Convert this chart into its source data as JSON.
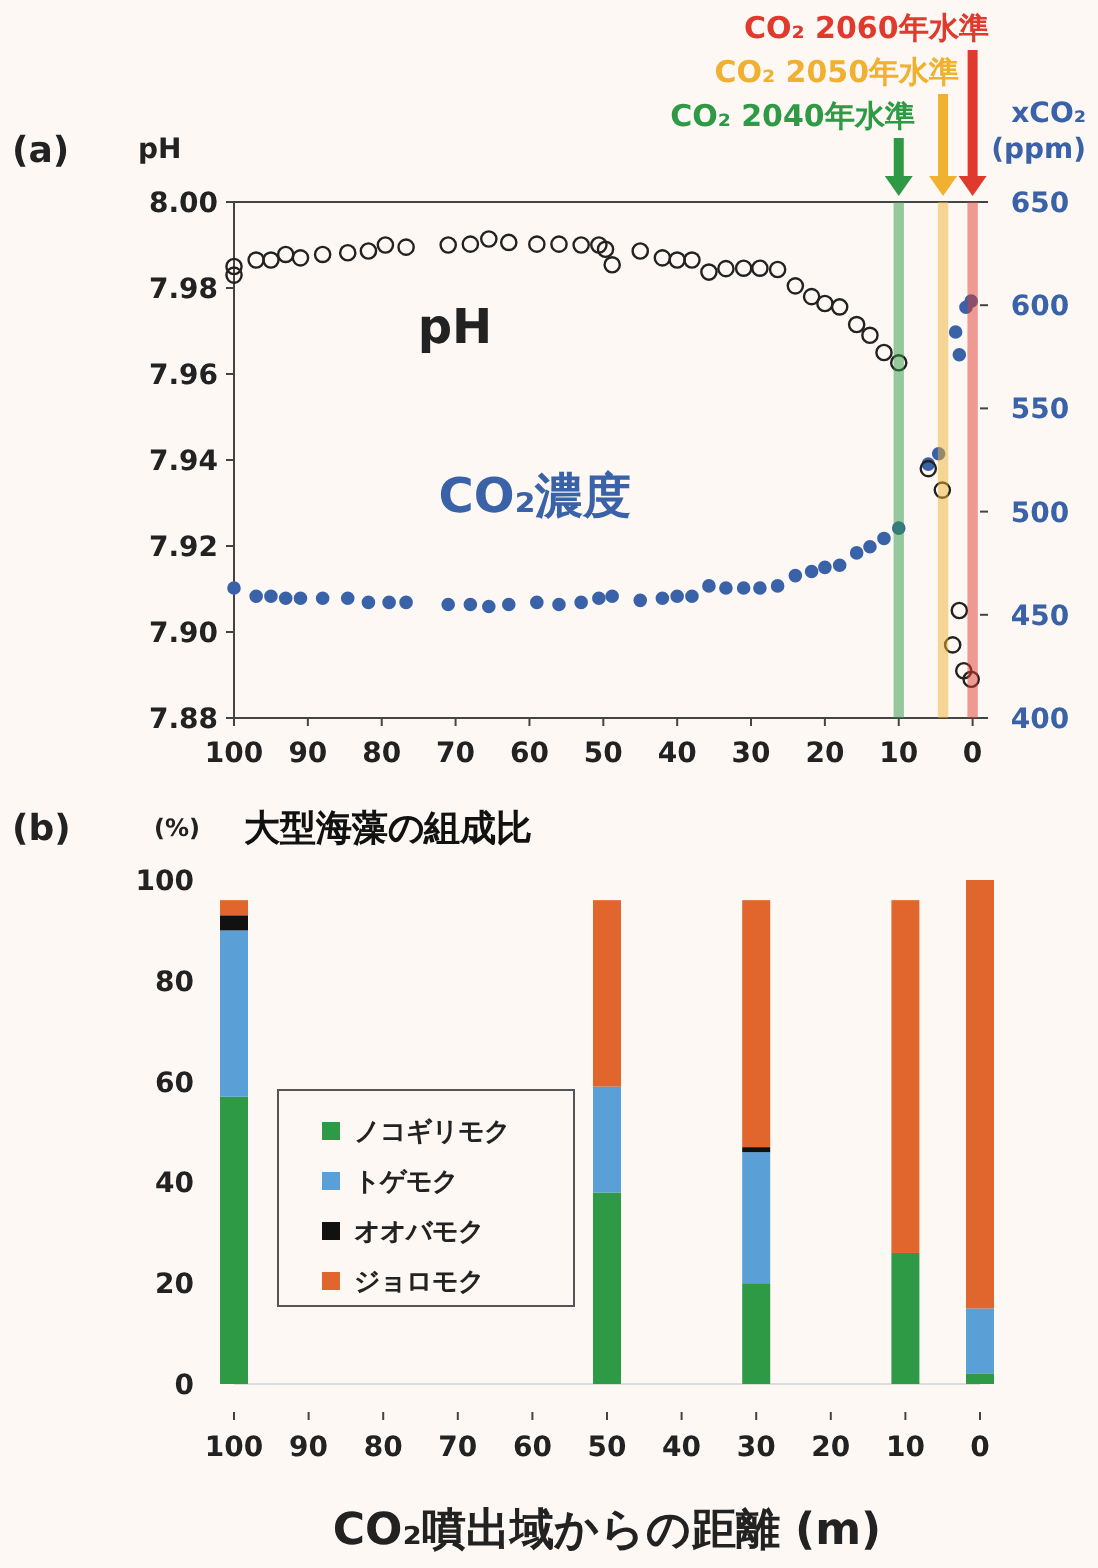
{
  "chart_data": [
    {
      "type": "scatter",
      "ylabel": "pH",
      "y2label": "xCO₂ (ppm)",
      "annotations": [
        "(a)"
      ],
      "xlim": [
        100,
        -1
      ],
      "xticks": [
        100,
        90,
        80,
        70,
        60,
        50,
        40,
        30,
        20,
        10,
        0
      ],
      "ylim": [
        7.88,
        8.0
      ],
      "yticks": [
        {
          "value": 7.88,
          "label": "7.88"
        },
        {
          "value": 7.9,
          "label": "7.90"
        },
        {
          "value": 7.92,
          "label": "7.92"
        },
        {
          "value": 7.94,
          "label": "7.94"
        },
        {
          "value": 7.96,
          "label": "7.96"
        },
        {
          "value": 7.98,
          "label": "7.98"
        },
        {
          "value": 8.0,
          "label": "8.00"
        }
      ],
      "y2lim": [
        400,
        650
      ],
      "y2ticks": [
        400,
        450,
        500,
        550,
        600,
        650
      ],
      "marker": "circle",
      "legend": false,
      "series": [
        {
          "name": "pH",
          "color": "#222222",
          "x": [
            100,
            100,
            97,
            95,
            93,
            91,
            88,
            84.6,
            81.8,
            79.5,
            76.7,
            71,
            68,
            65.5,
            62.8,
            59,
            56,
            53,
            50.6,
            49.7,
            48.8,
            45,
            42,
            40,
            38,
            35.7,
            33.4,
            31,
            28.8,
            26.4,
            24,
            21.8,
            20,
            18,
            15.7,
            13.9,
            12,
            10,
            6,
            4.1,
            1.8,
            2.7,
            1.2,
            0.2
          ],
          "values": [
            7.985,
            7.983,
            7.9865,
            7.9865,
            7.9878,
            7.987,
            7.9878,
            7.9882,
            7.9886,
            7.99,
            7.9895,
            7.99,
            7.9902,
            7.9914,
            7.9906,
            7.9902,
            7.9902,
            7.99,
            7.99,
            7.989,
            7.9854,
            7.9886,
            7.987,
            7.9865,
            7.9865,
            7.9837,
            7.9845,
            7.9846,
            7.9846,
            7.9843,
            7.9805,
            7.978,
            7.9764,
            7.9756,
            7.9715,
            7.969,
            7.965,
            7.9626,
            7.938,
            7.933,
            7.905,
            7.897,
            7.891,
            7.889
          ]
        },
        {
          "name": "CO₂濃度",
          "color": "#3a62a8",
          "axis": "y2",
          "x": [
            100,
            97,
            95,
            93,
            91,
            88,
            84.6,
            81.8,
            79,
            76.7,
            71,
            68,
            65.5,
            62.8,
            59,
            56,
            53,
            50.6,
            48.8,
            45,
            42,
            40,
            38,
            35.7,
            33.4,
            31,
            28.8,
            26.4,
            24,
            21.8,
            20,
            18,
            15.7,
            13.9,
            12,
            10,
            6,
            4.6,
            2.3,
            1.8,
            0.9,
            0.2
          ],
          "values": [
            463,
            459,
            459,
            458,
            458,
            458,
            458,
            456,
            456,
            456,
            455,
            455,
            454,
            455,
            456,
            455,
            456,
            458,
            459,
            457,
            458,
            459,
            459,
            464,
            463,
            463,
            463,
            464,
            469,
            471,
            473,
            474,
            480,
            483,
            487,
            492,
            523,
            528,
            587,
            576,
            599,
            602
          ]
        }
      ],
      "bands": [
        {
          "axis": "x",
          "from": 10.7,
          "to": 9.3,
          "label": "CO₂ 2040年水準",
          "color": "#2e9a46"
        },
        {
          "axis": "x",
          "from": 4.7,
          "to": 3.3,
          "label": "CO₂ 2050年水準",
          "color": "#f0b030"
        },
        {
          "axis": "x",
          "from": 0.7,
          "to": -0.7,
          "label": "CO₂ 2060年水準",
          "color": "#e03a2f"
        }
      ]
    },
    {
      "type": "bar",
      "title": "大型海藻の組成比",
      "ylabel": "(%)",
      "xlabel": "CO₂噴出域からの距離 (m)",
      "annotations": [
        "(b)"
      ],
      "stacked": true,
      "legend": "left",
      "x": [
        100,
        50,
        30,
        10,
        0
      ],
      "xlim": [
        100,
        0
      ],
      "xticks": [
        100,
        90,
        80,
        70,
        60,
        50,
        40,
        30,
        20,
        10,
        0
      ],
      "ylim": [
        0,
        100
      ],
      "yticks": [
        0,
        20,
        40,
        60,
        80,
        100
      ],
      "series": [
        {
          "name": "ノコギリモク",
          "color": "#2e9a46",
          "values": [
            57,
            38,
            20,
            26,
            2
          ]
        },
        {
          "name": "トゲモク",
          "color": "#5aa0d6",
          "values": [
            33,
            21,
            26,
            0,
            13
          ]
        },
        {
          "name": "オオバモク",
          "color": "#111111",
          "values": [
            3,
            0,
            1,
            0,
            0
          ]
        },
        {
          "name": "ジョロモク",
          "color": "#e0662e",
          "values": [
            3,
            37,
            49,
            70,
            85
          ]
        }
      ]
    }
  ]
}
